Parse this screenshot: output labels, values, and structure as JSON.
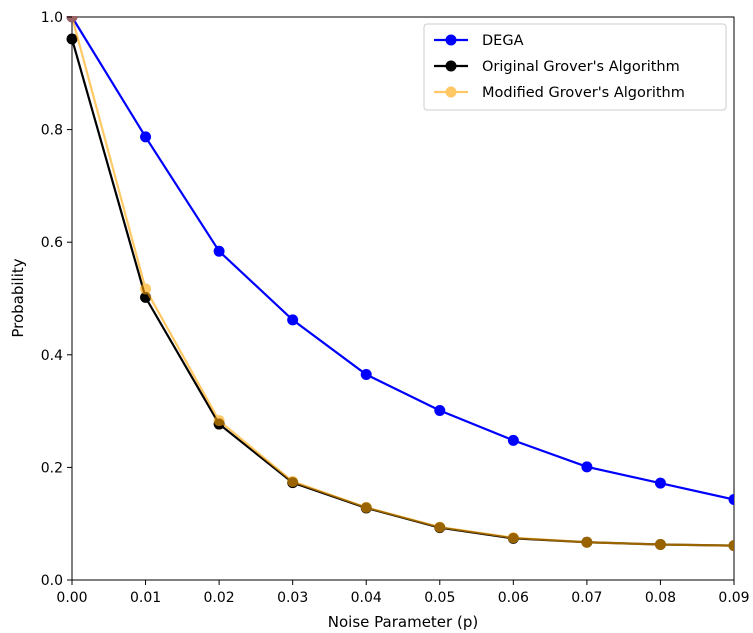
{
  "chart_data": {
    "type": "line",
    "title": "",
    "xlabel": "Noise Parameter (p)",
    "ylabel": "Probability",
    "xlim": [
      0.0,
      0.09
    ],
    "ylim": [
      0.0,
      1.0
    ],
    "grid": false,
    "legend_position": "top-right",
    "x": [
      0.0,
      0.01,
      0.02,
      0.03,
      0.04,
      0.05,
      0.06,
      0.07,
      0.08,
      0.09
    ],
    "xticks": [
      "0.00",
      "0.01",
      "0.02",
      "0.03",
      "0.04",
      "0.05",
      "0.06",
      "0.07",
      "0.08",
      "0.09"
    ],
    "yticks": [
      "0.0",
      "0.2",
      "0.4",
      "0.6",
      "0.8",
      "1.0"
    ],
    "series": [
      {
        "name": "DEGA",
        "color": "#0000ff",
        "values": [
          1.0,
          0.787,
          0.584,
          0.462,
          0.365,
          0.301,
          0.248,
          0.201,
          0.172,
          0.143
        ]
      },
      {
        "name": "Original Grover's Algorithm",
        "color": "#000000",
        "values": [
          0.961,
          0.502,
          0.277,
          0.173,
          0.128,
          0.093,
          0.074,
          0.067,
          0.063,
          0.061
        ]
      },
      {
        "name": "Modified Grover's Algorithm",
        "color": "#ffa500",
        "opacity": 0.6,
        "values": [
          1.0,
          0.517,
          0.283,
          0.175,
          0.129,
          0.094,
          0.075,
          0.067,
          0.063,
          0.061
        ]
      }
    ]
  }
}
